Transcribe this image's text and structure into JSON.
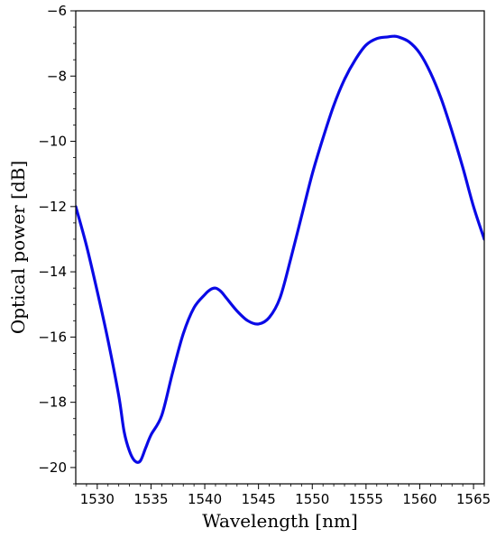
{
  "chart_data": {
    "type": "line",
    "title": "",
    "xlabel": "Wavelength [nm]",
    "ylabel": "Optical power [dB]",
    "xlim": [
      1528,
      1566
    ],
    "ylim": [
      -20.5,
      -6
    ],
    "grid": false,
    "x_ticks": [
      1530,
      1535,
      1540,
      1545,
      1550,
      1555,
      1560,
      1565
    ],
    "x_tick_labels": [
      "1530",
      "1535",
      "1540",
      "1545",
      "1550",
      "1555",
      "1560",
      "1565"
    ],
    "y_ticks": [
      -20,
      -18,
      -16,
      -14,
      -12,
      -10,
      -8,
      -6
    ],
    "y_tick_labels": [
      "−20",
      "−18",
      "−16",
      "−14",
      "−12",
      "−10",
      "−8",
      "−6"
    ],
    "series": [
      {
        "color": "#0a0ae6",
        "x": [
          1528.0,
          1529.0,
          1530.0,
          1531.0,
          1532.0,
          1532.5,
          1533.0,
          1533.5,
          1534.0,
          1534.5,
          1535.0,
          1536.0,
          1537.0,
          1538.0,
          1539.0,
          1540.0,
          1540.5,
          1541.0,
          1541.5,
          1542.0,
          1543.0,
          1544.0,
          1545.0,
          1546.0,
          1547.0,
          1548.0,
          1549.0,
          1550.0,
          1551.0,
          1552.0,
          1553.0,
          1554.0,
          1555.0,
          1556.0,
          1557.0,
          1557.5,
          1558.0,
          1559.0,
          1560.0,
          1561.0,
          1562.0,
          1563.0,
          1564.0,
          1565.0,
          1566.0
        ],
        "y": [
          -12.0,
          -13.2,
          -14.6,
          -16.1,
          -17.8,
          -18.9,
          -19.5,
          -19.8,
          -19.8,
          -19.4,
          -19.0,
          -18.4,
          -17.1,
          -15.9,
          -15.1,
          -14.7,
          -14.55,
          -14.5,
          -14.6,
          -14.8,
          -15.2,
          -15.5,
          -15.6,
          -15.4,
          -14.8,
          -13.6,
          -12.3,
          -11.0,
          -9.9,
          -8.9,
          -8.1,
          -7.5,
          -7.05,
          -6.85,
          -6.8,
          -6.78,
          -6.8,
          -6.95,
          -7.3,
          -7.9,
          -8.7,
          -9.7,
          -10.8,
          -12.0,
          -13.0
        ]
      }
    ]
  }
}
